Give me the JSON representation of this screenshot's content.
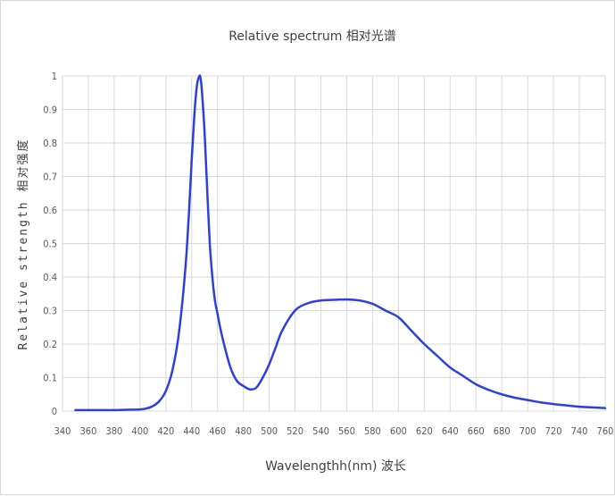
{
  "chart_data": {
    "type": "line",
    "title": "Relative spectrum 相对光谱",
    "xlabel": "Wavelengthh(nm) 波长",
    "ylabel": "Relative strength 相对强度",
    "xlim": [
      340,
      760
    ],
    "ylim": [
      0,
      1
    ],
    "x_ticks": [
      340,
      360,
      380,
      400,
      420,
      440,
      460,
      480,
      500,
      520,
      540,
      560,
      580,
      600,
      620,
      640,
      660,
      680,
      700,
      720,
      740,
      760
    ],
    "y_ticks": [
      0,
      0.1,
      0.2,
      0.3,
      0.4,
      0.5,
      0.6,
      0.7,
      0.8,
      0.9,
      1
    ],
    "grid": true,
    "legend": "none",
    "colors": {
      "line": "#2E3FE0",
      "grid": "#d9d9d9",
      "axis_text": "#595959"
    },
    "series": [
      {
        "x": [
          350,
          360,
          370,
          380,
          390,
          400,
          405,
          410,
          415,
          420,
          425,
          430,
          435,
          438,
          440,
          442,
          444,
          446,
          447,
          448,
          450,
          452,
          454,
          456,
          458,
          460,
          462,
          465,
          470,
          475,
          480,
          485,
          490,
          495,
          500,
          505,
          510,
          520,
          530,
          540,
          550,
          560,
          570,
          580,
          590,
          600,
          610,
          620,
          630,
          640,
          650,
          660,
          670,
          680,
          690,
          700,
          710,
          720,
          730,
          740,
          750,
          760
        ],
        "values": [
          0.003,
          0.003,
          0.003,
          0.003,
          0.004,
          0.005,
          0.008,
          0.015,
          0.03,
          0.06,
          0.12,
          0.23,
          0.42,
          0.6,
          0.75,
          0.88,
          0.97,
          1.0,
          0.99,
          0.95,
          0.83,
          0.66,
          0.5,
          0.4,
          0.33,
          0.29,
          0.25,
          0.2,
          0.13,
          0.09,
          0.075,
          0.065,
          0.07,
          0.1,
          0.14,
          0.19,
          0.24,
          0.3,
          0.322,
          0.33,
          0.332,
          0.333,
          0.33,
          0.32,
          0.3,
          0.28,
          0.24,
          0.2,
          0.165,
          0.13,
          0.105,
          0.08,
          0.063,
          0.05,
          0.04,
          0.033,
          0.026,
          0.021,
          0.017,
          0.013,
          0.011,
          0.009
        ]
      }
    ]
  }
}
